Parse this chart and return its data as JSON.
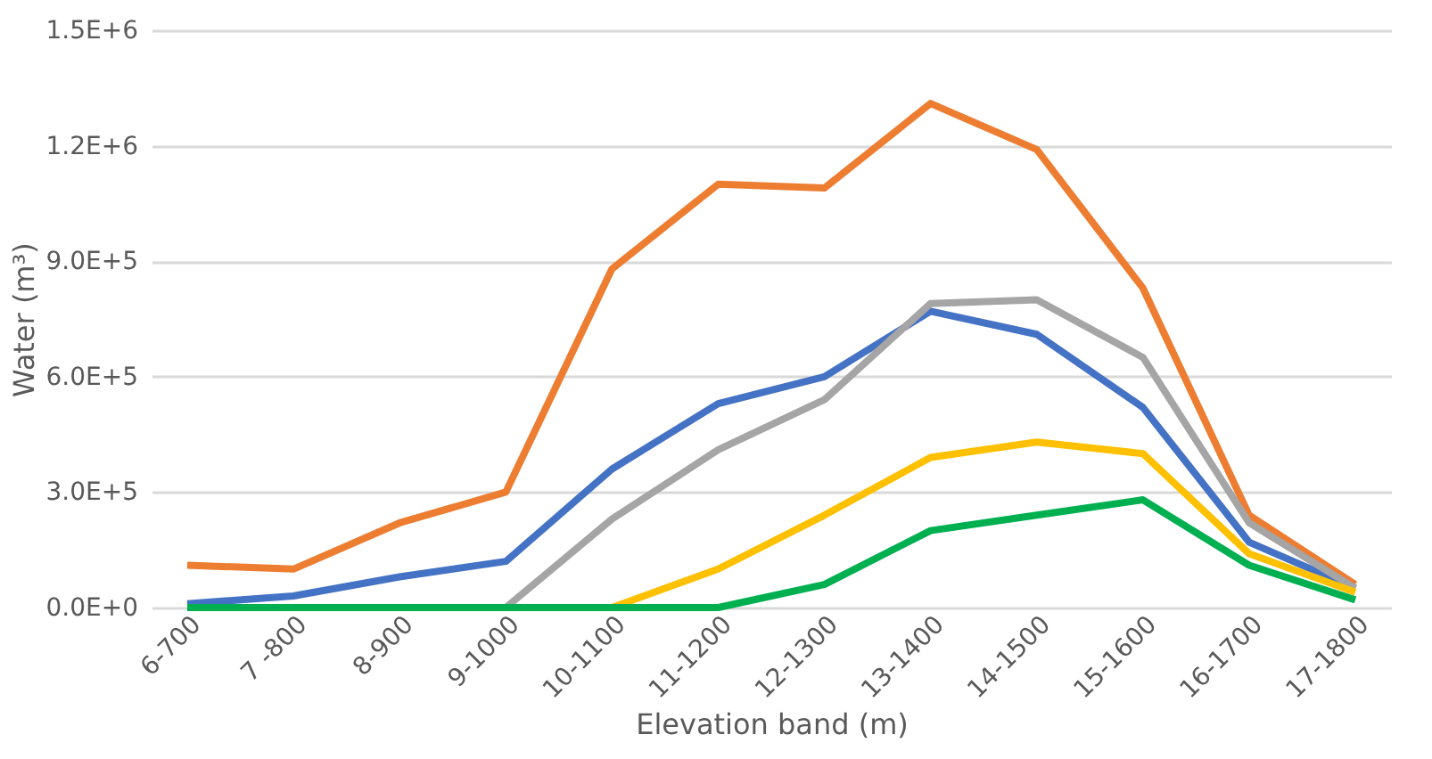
{
  "chart_data": {
    "type": "line",
    "xlabel": "Elevation band (m)",
    "ylabel": "Water (m³)",
    "categories": [
      "6-700",
      "7 -800",
      "8-900",
      "9-1000",
      "10-1100",
      "11-1200",
      "12-1300",
      "13-1400",
      "14-1500",
      "15-1600",
      "16-1700",
      "17-1800"
    ],
    "series": [
      {
        "color": "#ed7d31",
        "values": [
          110000,
          100000,
          220000,
          300000,
          880000,
          1100000,
          1090000,
          1310000,
          1190000,
          830000,
          240000,
          60000
        ]
      },
      {
        "color": "#4472c4",
        "values": [
          10000,
          30000,
          80000,
          120000,
          360000,
          530000,
          600000,
          770000,
          710000,
          520000,
          170000,
          50000
        ]
      },
      {
        "color": "#a5a5a5",
        "values": [
          null,
          null,
          null,
          0,
          230000,
          410000,
          540000,
          790000,
          800000,
          650000,
          220000,
          50000
        ]
      },
      {
        "color": "#ffc000",
        "values": [
          null,
          null,
          null,
          null,
          0,
          100000,
          240000,
          390000,
          430000,
          400000,
          140000,
          40000
        ]
      },
      {
        "color": "#00b050",
        "values": [
          0,
          0,
          0,
          0,
          0,
          0,
          60000,
          200000,
          240000,
          280000,
          110000,
          20000
        ]
      }
    ],
    "ylim": [
      0,
      1500000
    ],
    "yticks": [
      {
        "value": 0,
        "label": "0.0E+0"
      },
      {
        "value": 300000,
        "label": "3.0E+5"
      },
      {
        "value": 600000,
        "label": "6.0E+5"
      },
      {
        "value": 900000,
        "label": "9.0E+5"
      },
      {
        "value": 1200000,
        "label": "1.2E+6"
      },
      {
        "value": 1500000,
        "label": "1.5E+6"
      }
    ],
    "grid": "y",
    "legend": false,
    "marker": "none",
    "line_style": "solid"
  }
}
